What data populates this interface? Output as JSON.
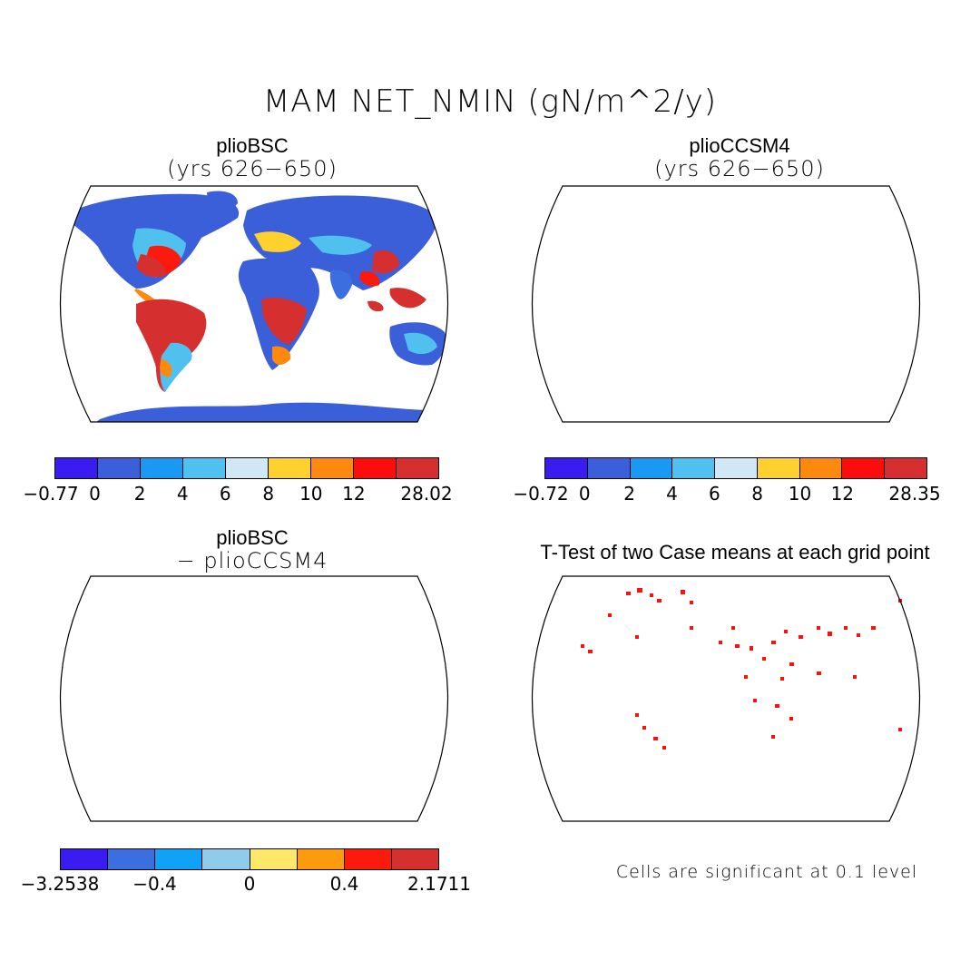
{
  "figure_title": "MAM NET_NMIN (gN/m^2/y)",
  "panels": {
    "top_left": {
      "title": "plioBSC",
      "subtitle": "(yrs 626−650)"
    },
    "top_right": {
      "title": "plioCCSM4",
      "subtitle": "(yrs 626−650)"
    },
    "bottom_left": {
      "title": "plioBSC",
      "subtitle": "− plioCCSM4"
    },
    "bottom_right": {
      "title": "T-Test of two Case means at each grid point"
    }
  },
  "colorbars": {
    "top_left": {
      "colors": [
        "#3a1cf0",
        "#3b5ed9",
        "#1999f2",
        "#50c0ee",
        "#cfe8f4",
        "#fed12e",
        "#fd8a0f",
        "#fb0d0d",
        "#d62f2f"
      ],
      "labels": [
        "−0.77",
        "0",
        "2",
        "4",
        "6",
        "8",
        "10",
        "12",
        "28.02"
      ]
    },
    "top_right": {
      "colors": [
        "#3a1cf0",
        "#3b5ed9",
        "#1999f2",
        "#50c0ee",
        "#cfe8f4",
        "#fed12e",
        "#fd8a0f",
        "#fb0d0d",
        "#d62f2f"
      ],
      "labels": [
        "−0.72",
        "0",
        "2",
        "4",
        "6",
        "8",
        "10",
        "12",
        "28.35"
      ]
    },
    "bottom_left": {
      "colors": [
        "#3a1cf0",
        "#3b6fe0",
        "#0fa2f6",
        "#8fcbeb",
        "#fde86a",
        "#fd9a0d",
        "#fb1a0d",
        "#d62f2f"
      ],
      "labels": [
        "−3.2538",
        "−0.4",
        "0",
        "0.4",
        "2.1711"
      ]
    }
  },
  "significance_note": "Cells are significant at 0.1 level"
}
